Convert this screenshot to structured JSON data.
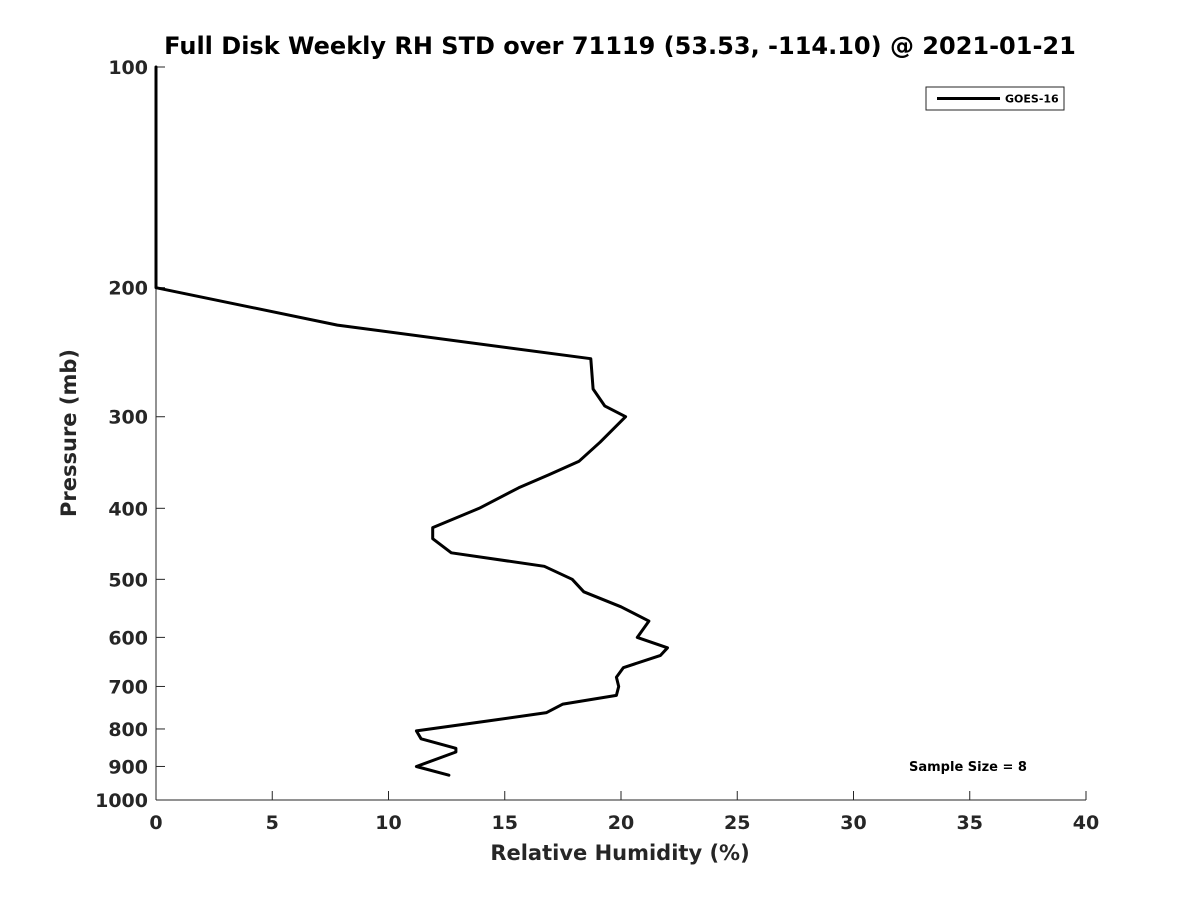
{
  "chart_data": {
    "type": "line",
    "title": "Full Disk Weekly RH STD over 71119 (53.53, -114.10) @ 2021-01-21",
    "xlabel": "Relative Humidity (%)",
    "ylabel": "Pressure (mb)",
    "xlim": [
      0,
      40
    ],
    "ylim": [
      100,
      1000
    ],
    "y_scale": "log",
    "y_direction": "reversed",
    "x_ticks": [
      0,
      5,
      10,
      15,
      20,
      25,
      30,
      35,
      40
    ],
    "y_ticks": [
      100,
      200,
      300,
      400,
      500,
      600,
      700,
      800,
      900,
      1000
    ],
    "grid": false,
    "legend_placement": "top-right",
    "line_color": "#000000",
    "annotation": "Sample Size = 8",
    "series": [
      {
        "name": "GOES-16",
        "points": [
          {
            "x": 0.0,
            "y": 100
          },
          {
            "x": 0.0,
            "y": 125
          },
          {
            "x": 0.0,
            "y": 150
          },
          {
            "x": 0.0,
            "y": 175
          },
          {
            "x": 0.0,
            "y": 200
          },
          {
            "x": 7.8,
            "y": 225
          },
          {
            "x": 18.7,
            "y": 250
          },
          {
            "x": 18.8,
            "y": 275
          },
          {
            "x": 19.3,
            "y": 290
          },
          {
            "x": 20.2,
            "y": 300
          },
          {
            "x": 19.1,
            "y": 325
          },
          {
            "x": 18.2,
            "y": 345
          },
          {
            "x": 16.9,
            "y": 360
          },
          {
            "x": 15.6,
            "y": 375
          },
          {
            "x": 13.9,
            "y": 400
          },
          {
            "x": 11.9,
            "y": 425
          },
          {
            "x": 11.9,
            "y": 440
          },
          {
            "x": 12.7,
            "y": 460
          },
          {
            "x": 16.7,
            "y": 480
          },
          {
            "x": 17.9,
            "y": 500
          },
          {
            "x": 18.4,
            "y": 520
          },
          {
            "x": 20.0,
            "y": 545
          },
          {
            "x": 21.2,
            "y": 570
          },
          {
            "x": 20.7,
            "y": 600
          },
          {
            "x": 22.0,
            "y": 620
          },
          {
            "x": 21.7,
            "y": 635
          },
          {
            "x": 20.1,
            "y": 660
          },
          {
            "x": 19.8,
            "y": 680
          },
          {
            "x": 19.9,
            "y": 700
          },
          {
            "x": 19.8,
            "y": 720
          },
          {
            "x": 17.5,
            "y": 740
          },
          {
            "x": 16.8,
            "y": 760
          },
          {
            "x": 14.3,
            "y": 780
          },
          {
            "x": 11.2,
            "y": 805
          },
          {
            "x": 11.4,
            "y": 825
          },
          {
            "x": 12.9,
            "y": 850
          },
          {
            "x": 12.9,
            "y": 860
          },
          {
            "x": 11.2,
            "y": 900
          },
          {
            "x": 12.6,
            "y": 925
          }
        ]
      }
    ]
  }
}
